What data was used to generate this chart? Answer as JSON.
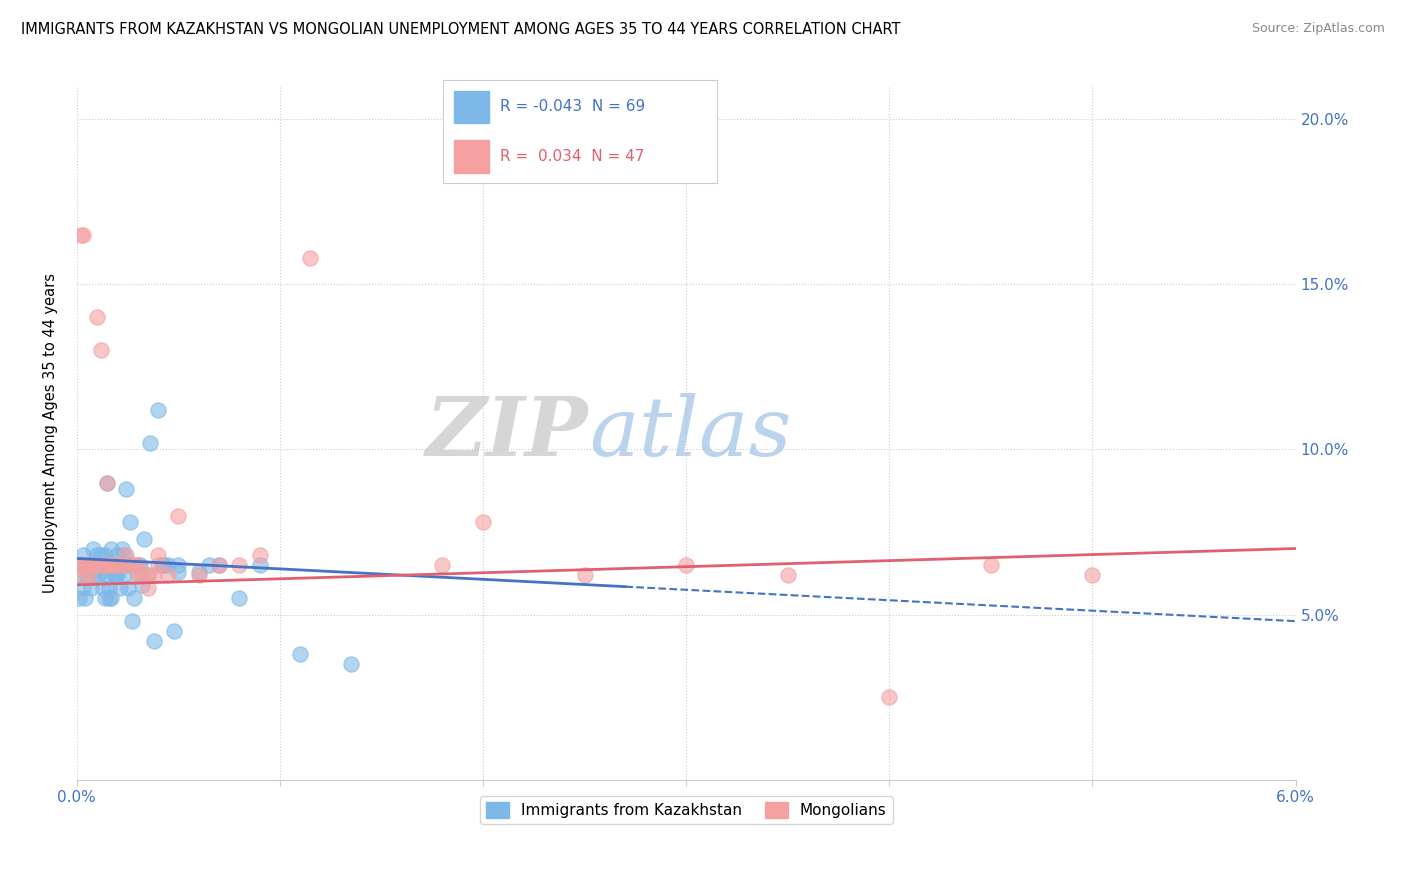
{
  "title": "IMMIGRANTS FROM KAZAKHSTAN VS MONGOLIAN UNEMPLOYMENT AMONG AGES 35 TO 44 YEARS CORRELATION CHART",
  "source": "Source: ZipAtlas.com",
  "ylabel": "Unemployment Among Ages 35 to 44 years",
  "legend1_label": "Immigrants from Kazakhstan",
  "legend2_label": "Mongolians",
  "R1": -0.043,
  "N1": 69,
  "R2": 0.034,
  "N2": 47,
  "xlim": [
    0.0,
    0.06
  ],
  "ylim": [
    0.0,
    0.21
  ],
  "yticks": [
    0.05,
    0.1,
    0.15,
    0.2
  ],
  "ytick_labels": [
    "5.0%",
    "10.0%",
    "15.0%",
    "20.0%"
  ],
  "color_blue": "#7db8e8",
  "color_pink": "#f4a0a0",
  "color_blue_line": "#4472c4",
  "color_pink_line": "#e06070",
  "watermark_zip": "ZIP",
  "watermark_atlas": "atlas",
  "blue_x": [
    0.0002,
    0.0003,
    0.0004,
    0.0005,
    0.0006,
    0.0007,
    0.0008,
    0.0009,
    0.001,
    0.001,
    0.0011,
    0.0012,
    0.0013,
    0.0013,
    0.0014,
    0.0014,
    0.0015,
    0.0015,
    0.0016,
    0.0016,
    0.0017,
    0.0017,
    0.0018,
    0.0019,
    0.002,
    0.002,
    0.0021,
    0.0021,
    0.0022,
    0.0022,
    0.0023,
    0.0024,
    0.0025,
    0.0025,
    0.0026,
    0.0027,
    0.0028,
    0.003,
    0.003,
    0.0032,
    0.0033,
    0.0035,
    0.0036,
    0.004,
    0.0042,
    0.0045,
    0.005,
    0.006,
    0.0065,
    0.007,
    0.008,
    0.009,
    0.011,
    0.0135,
    0.0001,
    0.0001,
    0.0003,
    0.0005,
    0.0008,
    0.0012,
    0.0016,
    0.0019,
    0.0023,
    0.0027,
    0.0031,
    0.0038,
    0.0043,
    0.0048,
    0.005
  ],
  "blue_y": [
    0.065,
    0.068,
    0.055,
    0.062,
    0.065,
    0.058,
    0.07,
    0.065,
    0.062,
    0.068,
    0.065,
    0.063,
    0.065,
    0.058,
    0.055,
    0.068,
    0.09,
    0.062,
    0.065,
    0.058,
    0.055,
    0.07,
    0.065,
    0.062,
    0.068,
    0.062,
    0.065,
    0.058,
    0.07,
    0.065,
    0.068,
    0.088,
    0.065,
    0.058,
    0.078,
    0.065,
    0.055,
    0.065,
    0.062,
    0.059,
    0.073,
    0.062,
    0.102,
    0.112,
    0.065,
    0.065,
    0.063,
    0.063,
    0.065,
    0.065,
    0.055,
    0.065,
    0.038,
    0.035,
    0.062,
    0.055,
    0.058,
    0.065,
    0.062,
    0.068,
    0.055,
    0.062,
    0.062,
    0.048,
    0.065,
    0.042,
    0.065,
    0.045,
    0.065
  ],
  "pink_x": [
    0.0002,
    0.0003,
    0.0004,
    0.0005,
    0.0006,
    0.0007,
    0.0009,
    0.001,
    0.0012,
    0.0014,
    0.0015,
    0.0016,
    0.0018,
    0.002,
    0.0022,
    0.0024,
    0.0025,
    0.0028,
    0.003,
    0.0032,
    0.0035,
    0.0038,
    0.004,
    0.0045,
    0.005,
    0.006,
    0.007,
    0.008,
    0.009,
    0.0115,
    0.018,
    0.02,
    0.025,
    0.03,
    0.035,
    0.04,
    0.045,
    0.05,
    0.003,
    0.0035,
    0.004,
    0.0001,
    0.0003,
    0.0005,
    0.0008,
    0.0013,
    0.0017
  ],
  "pink_y": [
    0.165,
    0.165,
    0.062,
    0.065,
    0.062,
    0.065,
    0.065,
    0.14,
    0.13,
    0.065,
    0.09,
    0.065,
    0.065,
    0.065,
    0.065,
    0.068,
    0.065,
    0.065,
    0.065,
    0.062,
    0.058,
    0.062,
    0.068,
    0.062,
    0.08,
    0.062,
    0.065,
    0.065,
    0.068,
    0.158,
    0.065,
    0.078,
    0.062,
    0.065,
    0.062,
    0.025,
    0.065,
    0.062,
    0.062,
    0.062,
    0.065,
    0.065,
    0.065,
    0.065,
    0.065,
    0.065,
    0.065
  ],
  "trend_blue_x0": 0.0,
  "trend_blue_x1": 0.06,
  "trend_blue_y0": 0.067,
  "trend_blue_y1": 0.048,
  "trend_pink_x0": 0.0,
  "trend_pink_x1": 0.06,
  "trend_pink_y0": 0.059,
  "trend_pink_y1": 0.07
}
